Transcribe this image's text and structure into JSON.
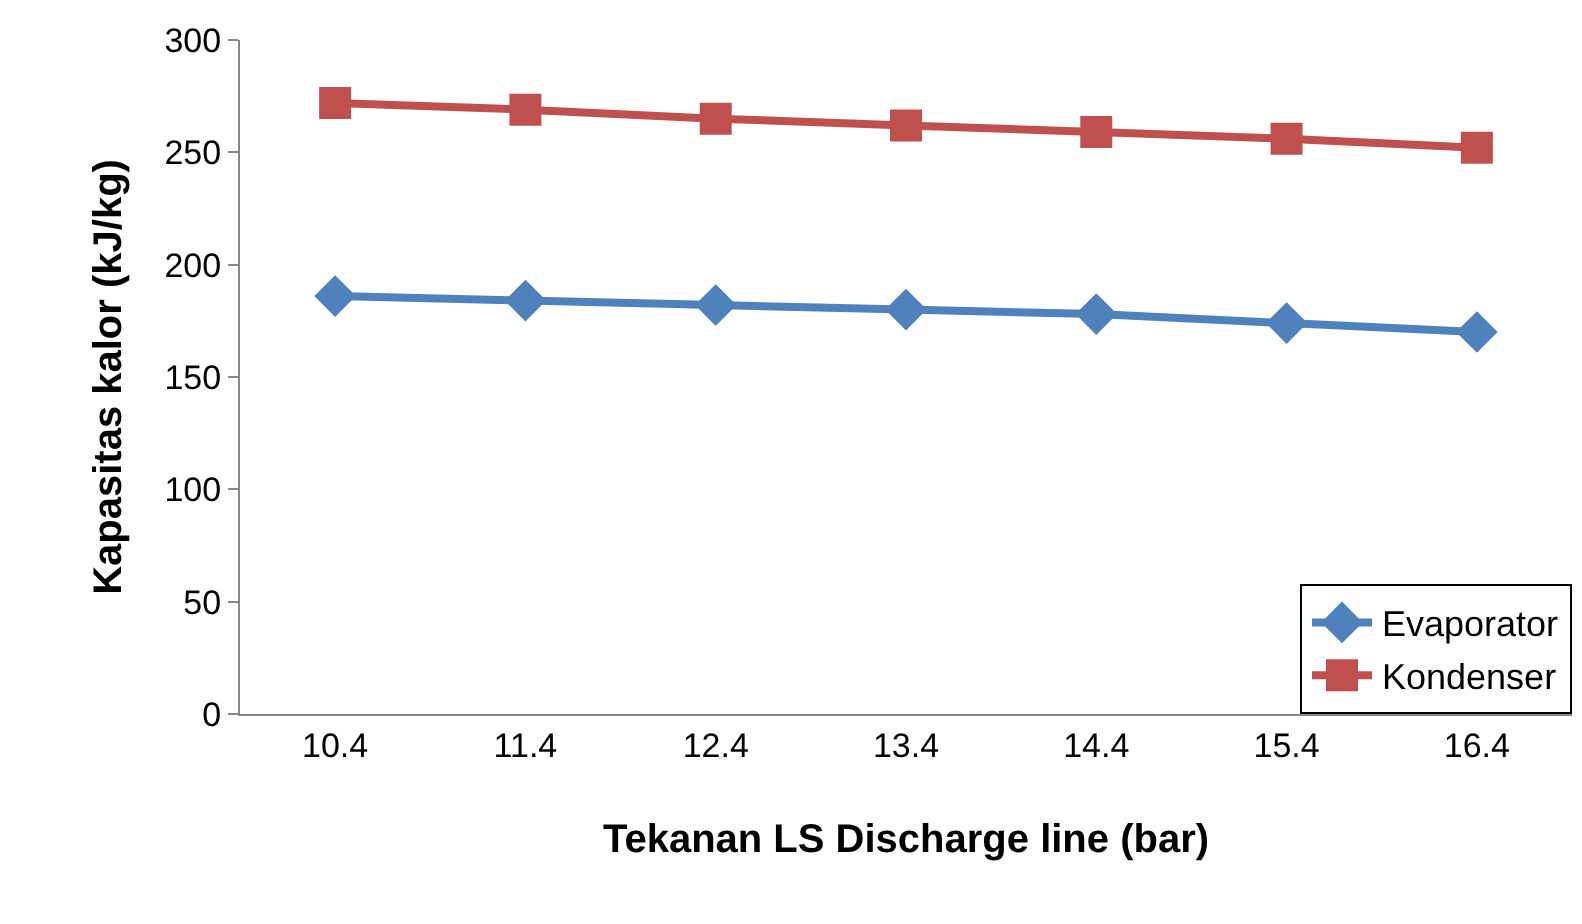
{
  "chart_data": {
    "type": "line",
    "xlabel": "Tekanan LS Discharge line (bar)",
    "ylabel": "Kapasitas kalor (kJ/kg)",
    "categories": [
      "10.4",
      "11.4",
      "12.4",
      "13.4",
      "14.4",
      "15.4",
      "16.4"
    ],
    "series": [
      {
        "name": "Evaporator",
        "color": "#4f81bd",
        "marker": "diamond",
        "values": [
          186,
          184,
          182,
          180,
          178,
          174,
          170
        ]
      },
      {
        "name": "Kondenser",
        "color": "#c0504d",
        "marker": "square",
        "values": [
          272,
          269,
          265,
          262,
          259,
          256,
          252
        ]
      }
    ],
    "ylim": [
      0,
      300
    ],
    "yticks": [
      0,
      50,
      100,
      150,
      200,
      250,
      300
    ],
    "legend": "bottom right",
    "line_style": "solid"
  }
}
